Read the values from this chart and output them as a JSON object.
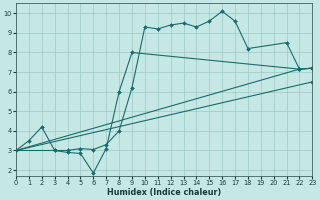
{
  "xlabel": "Humidex (Indice chaleur)",
  "xlim": [
    0,
    23
  ],
  "ylim": [
    1.7,
    10.5
  ],
  "xticks": [
    0,
    1,
    2,
    3,
    4,
    5,
    6,
    7,
    8,
    9,
    10,
    11,
    12,
    13,
    14,
    15,
    16,
    17,
    18,
    19,
    20,
    21,
    22,
    23
  ],
  "yticks": [
    2,
    3,
    4,
    5,
    6,
    7,
    8,
    9,
    10
  ],
  "bg_color": "#c5e8e5",
  "grid_color": "#9ec8c5",
  "line_color": "#1a6b6b",
  "line1_x": [
    0,
    1,
    2,
    3,
    4,
    5,
    6,
    7,
    8,
    9,
    10,
    11,
    12,
    13,
    14,
    15,
    16,
    17,
    18,
    21,
    22,
    23
  ],
  "line1_y": [
    3.0,
    3.5,
    4.2,
    3.0,
    3.0,
    3.1,
    3.05,
    3.3,
    4.0,
    6.2,
    9.3,
    9.2,
    9.4,
    9.5,
    9.3,
    9.6,
    10.1,
    9.6,
    8.2,
    8.5,
    7.15,
    7.2
  ],
  "line2_x": [
    0,
    3,
    4,
    5,
    6,
    7,
    8,
    9,
    22,
    23
  ],
  "line2_y": [
    3.0,
    3.0,
    2.9,
    2.85,
    1.85,
    3.1,
    6.0,
    8.0,
    7.15,
    7.2
  ],
  "line3_x": [
    0,
    22,
    23
  ],
  "line3_y": [
    3.0,
    7.15,
    7.2
  ],
  "line4_x": [
    0,
    23
  ],
  "line4_y": [
    3.0,
    6.5
  ]
}
